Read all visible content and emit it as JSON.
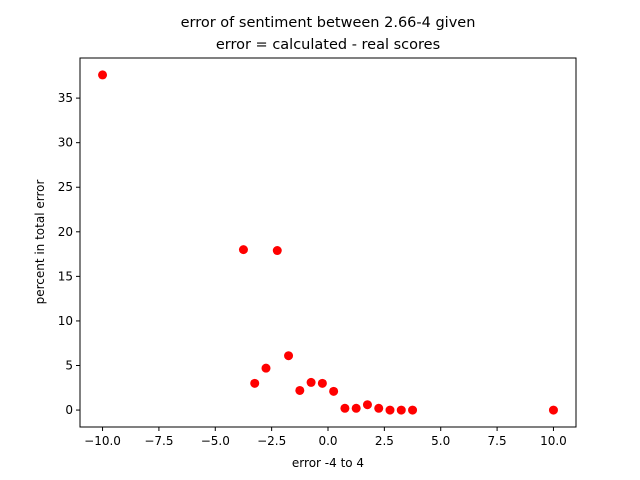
{
  "chart_data": {
    "type": "scatter",
    "title_lines": [
      "error of sentiment between 2.66-4 given",
      "error = calculated - real scores"
    ],
    "xlabel": "error -4 to 4",
    "ylabel": "percent in total error",
    "xlim": [
      -11.0,
      11.0
    ],
    "ylim": [
      -1.9,
      39.5
    ],
    "x_ticks": [
      -10.0,
      -7.5,
      -5.0,
      -2.5,
      0.0,
      2.5,
      5.0,
      7.5,
      10.0
    ],
    "x_tick_labels": [
      "−10.0",
      "−7.5",
      "−5.0",
      "−2.5",
      "0.0",
      "2.5",
      "5.0",
      "7.5",
      "10.0"
    ],
    "y_ticks": [
      0,
      5,
      10,
      15,
      20,
      25,
      30,
      35
    ],
    "y_tick_labels": [
      "0",
      "5",
      "10",
      "15",
      "20",
      "25",
      "30",
      "35"
    ],
    "grid": false,
    "marker_color": "#ff0000",
    "points": [
      {
        "x": -10.0,
        "y": 37.6
      },
      {
        "x": -3.75,
        "y": 18.0
      },
      {
        "x": -3.25,
        "y": 3.0
      },
      {
        "x": -2.75,
        "y": 4.7
      },
      {
        "x": -2.25,
        "y": 17.9
      },
      {
        "x": -1.75,
        "y": 6.1
      },
      {
        "x": -1.25,
        "y": 2.2
      },
      {
        "x": -0.75,
        "y": 3.1
      },
      {
        "x": -0.25,
        "y": 3.0
      },
      {
        "x": 0.25,
        "y": 2.1
      },
      {
        "x": 0.75,
        "y": 0.2
      },
      {
        "x": 1.25,
        "y": 0.2
      },
      {
        "x": 1.75,
        "y": 0.6
      },
      {
        "x": 2.25,
        "y": 0.2
      },
      {
        "x": 2.75,
        "y": 0.0
      },
      {
        "x": 3.25,
        "y": 0.0
      },
      {
        "x": 3.75,
        "y": 0.0
      },
      {
        "x": 10.0,
        "y": 0.0
      }
    ]
  }
}
